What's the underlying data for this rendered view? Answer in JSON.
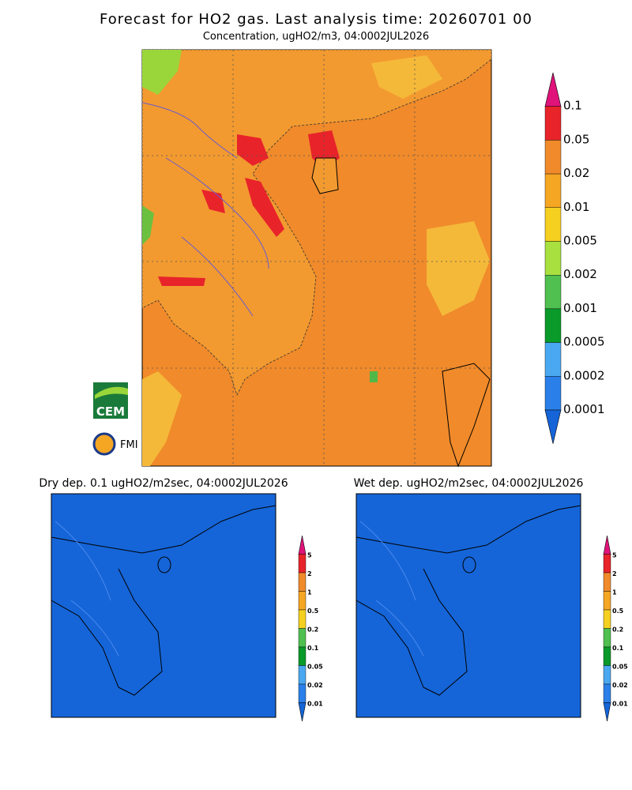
{
  "header": {
    "title": "Forecast for HO2 gas. Last analysis time: 20260701 00"
  },
  "panels": [
    {
      "title": "Concentration, ugHO2/m3, 04:0002JUL2026",
      "colorbar": [
        "0.1",
        "0.05",
        "0.02",
        "0.01",
        "0.005",
        "0.002",
        "0.001",
        "0.0005",
        "0.0002",
        "0.0001"
      ]
    },
    {
      "title": "Dry dep. 0.1 ugHO2/m2sec, 04:0002JUL2026",
      "colorbar": [
        "5",
        "2",
        "1",
        "0.5",
        "0.2",
        "0.1",
        "0.05",
        "0.02",
        "0.01"
      ]
    },
    {
      "title": "Wet dep. ugHO2/m2sec, 04:0002JUL2026",
      "colorbar": [
        "5",
        "2",
        "1",
        "0.5",
        "0.2",
        "0.1",
        "0.05",
        "0.02",
        "0.01"
      ]
    }
  ],
  "logos": [
    "CEM",
    "FMI"
  ]
}
